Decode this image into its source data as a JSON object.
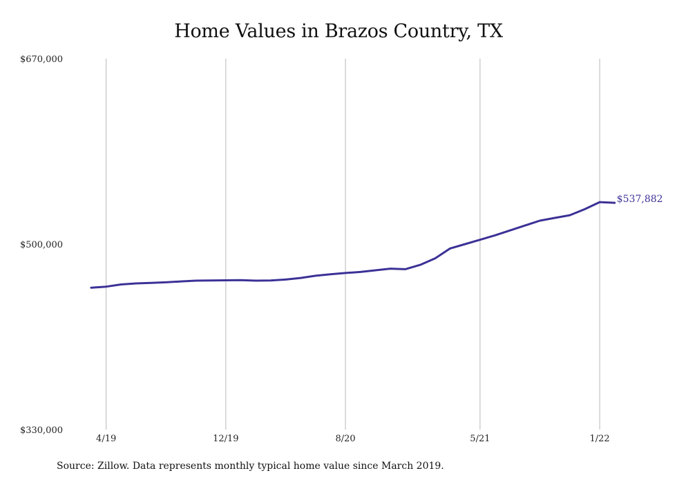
{
  "chart_data": {
    "type": "line",
    "title": "Home Values in Brazos Country, TX",
    "xlabel": "",
    "ylabel": "",
    "ylim": [
      330000,
      670000
    ],
    "yticks": [
      {
        "value": 670000,
        "label": "$670,000"
      },
      {
        "value": 500000,
        "label": "$500,000"
      },
      {
        "value": 330000,
        "label": "$330,000"
      }
    ],
    "xticks": [
      {
        "index": 1,
        "label": "4/19"
      },
      {
        "index": 9,
        "label": "12/19"
      },
      {
        "index": 17,
        "label": "8/20"
      },
      {
        "index": 26,
        "label": "5/21"
      },
      {
        "index": 34,
        "label": "1/22"
      }
    ],
    "series": [
      {
        "color": "#3b3196",
        "x": [
          "3/19",
          "4/19",
          "5/19",
          "6/19",
          "7/19",
          "8/19",
          "9/19",
          "10/19",
          "11/19",
          "12/19",
          "1/20",
          "2/20",
          "3/20",
          "4/20",
          "5/20",
          "6/20",
          "7/20",
          "8/20",
          "9/20",
          "10/20",
          "11/20",
          "12/20",
          "1/21",
          "2/21",
          "3/21",
          "4/21",
          "5/21",
          "6/21",
          "7/21",
          "8/21",
          "9/21",
          "10/21",
          "11/21",
          "12/21",
          "1/22",
          "2/22",
          "3/22"
        ],
        "values": [
          460000,
          461000,
          463000,
          464000,
          464500,
          465000,
          465800,
          466500,
          466700,
          466800,
          467000,
          466500,
          466700,
          467500,
          469000,
          471000,
          472300,
          473500,
          474500,
          476000,
          477500,
          477000,
          481000,
          487000,
          496000,
          500000,
          504000,
          508000,
          512500,
          517000,
          521500,
          524000,
          526500,
          532000,
          538500,
          537882,
          537882
        ]
      }
    ],
    "end_label": "$537,882",
    "grid": "vertical",
    "source": "Source: Zillow. Data represents monthly typical home value since March 2019."
  }
}
